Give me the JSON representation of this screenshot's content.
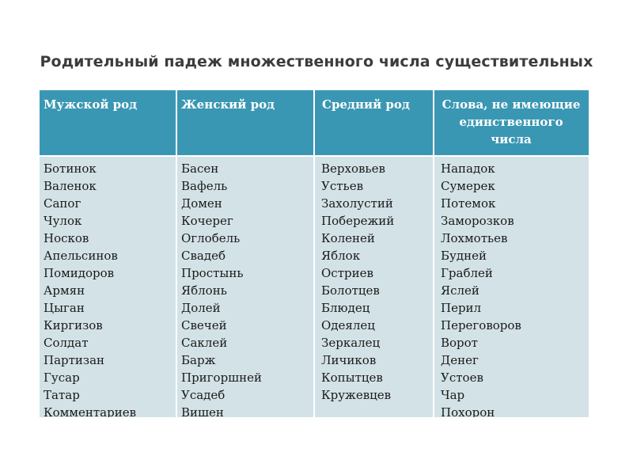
{
  "title": "Родительный падеж множественного числа существительных",
  "table": {
    "headers": [
      "Мужской род",
      "Женский род",
      "Средний род",
      "Слова, не имеющие единственного числа"
    ],
    "header_last_lines": [
      "Слова, не имеющие",
      "единственного",
      "числа"
    ],
    "columns": [
      [
        "Ботинок",
        "Валенок",
        "Сапог",
        "Чулок",
        "Носков",
        "Апельсинов",
        "Помидоров",
        "Армян",
        "Цыган",
        "Киргизов",
        "Солдат",
        "Партизан",
        "Гусар",
        "Татар",
        "Комментариев"
      ],
      [
        "Басен",
        "Вафель",
        "Домен",
        "Кочерег",
        "Оглобель",
        "Свадеб",
        "Простынь",
        "Яблонь",
        "Долей",
        "Свечей",
        "Саклей",
        "Барж",
        "Пригоршней",
        "Усадеб",
        "Вишен"
      ],
      [
        "Верховьев",
        "Устьев",
        "Захолустий",
        "Побережий",
        "Коленей",
        "Яблок",
        "Остриев",
        "Болотцев",
        "Блюдец",
        "Одеялец",
        "Зеркалец",
        "Личиков",
        "Копытцев",
        "Кружевцев"
      ],
      [
        "Нападок",
        "Сумерек",
        "Потемок",
        "Заморозков",
        "Лохмотьев",
        "Будней",
        "Граблей",
        "Яслей",
        "Перил",
        "Переговоров",
        "Ворот",
        "Денег",
        "Устоев",
        "Чар",
        "Похорон"
      ]
    ]
  },
  "colors": {
    "header_bg": "#3a97b3",
    "body_bg": "#d3e2e7",
    "title_text": "#3c3c3c"
  }
}
